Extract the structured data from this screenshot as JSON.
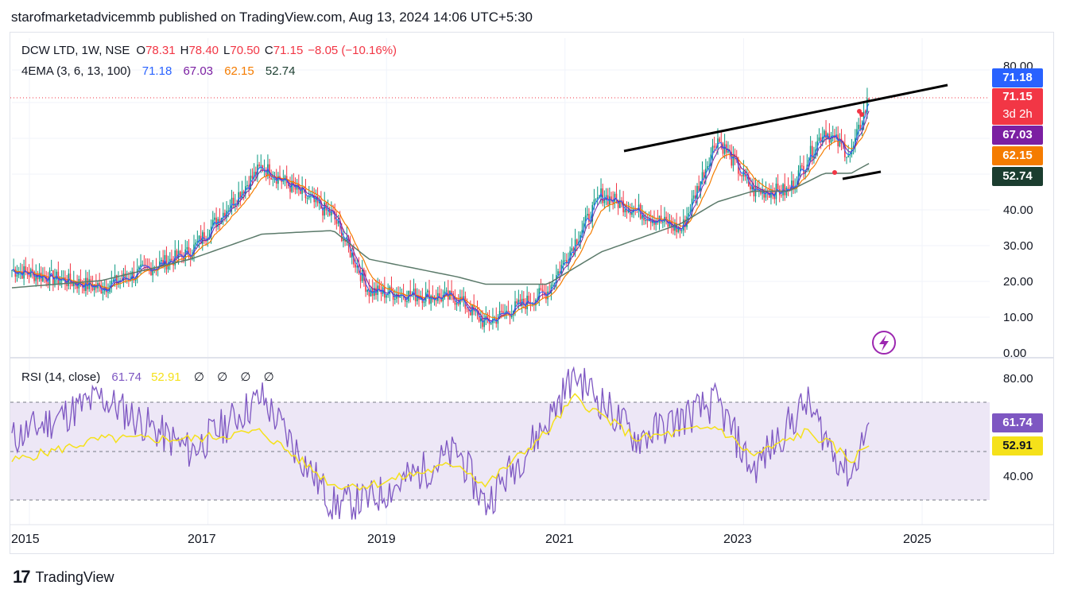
{
  "header": {
    "publisher_line": "starofmarketadvicemmb published on TradingView.com, Aug 13, 2024 14:06 UTC+5:30"
  },
  "symbol": {
    "name": "DCW LTD, 1W, NSE",
    "open_label": "O",
    "open": "78.31",
    "high_label": "H",
    "high": "78.40",
    "low_label": "L",
    "low": "70.50",
    "close_label": "C",
    "close": "71.15",
    "change": "−8.05 (−10.16%)"
  },
  "ema_legend": {
    "name": "4EMA (3, 6, 13, 100)",
    "values": [
      "71.18",
      "67.03",
      "62.15",
      "52.74"
    ]
  },
  "rsi_legend": {
    "name": "RSI (14, close)",
    "values": [
      "61.74",
      "52.91"
    ],
    "empties": [
      "∅",
      "∅",
      "∅",
      "∅"
    ]
  },
  "price_axis": [
    "80.00",
    "40.00",
    "30.00",
    "20.00",
    "10.00",
    "0.00"
  ],
  "rsi_axis": [
    "80.00",
    "40.00"
  ],
  "time_axis": [
    "2015",
    "2017",
    "2019",
    "2021",
    "2023",
    "2025"
  ],
  "price_tags": {
    "ema3": "71.18",
    "last_price": "71.15",
    "countdown": "3d 2h",
    "ema6": "67.03",
    "ema13": "62.15",
    "ema100": "52.74"
  },
  "rsi_tags": {
    "rsi": "61.74",
    "rsi_ma": "52.91"
  },
  "colors": {
    "ema3": "#2962ff",
    "ema6": "#7b1fa2",
    "ema13": "#f57c00",
    "ema100": "#1b3d2f",
    "last_price": "#f23645",
    "up": "#089981",
    "down": "#f23645",
    "rsi": "#7e57c2",
    "rsi_ma": "#f5e11a",
    "rsi_band": "#ede7f6"
  },
  "icons": {
    "lightning": "lightning-icon",
    "logo": "tradingview-logo-icon"
  },
  "footer": {
    "brand": "TradingView"
  },
  "chart_data": [
    {
      "type": "line",
      "title": "DCW LTD, 1W, NSE",
      "ylim": [
        0,
        80
      ],
      "x": [
        "2015",
        "2016",
        "2017",
        "2017.8",
        "2018.6",
        "2019",
        "2020",
        "2020.3",
        "2021",
        "2021.6",
        "2022.5",
        "2022.9",
        "2023.3",
        "2023.7",
        "2024.1",
        "2024.4",
        "2024.6"
      ],
      "series": [
        {
          "name": "DCW LTD",
          "values": [
            23,
            18,
            28,
            52,
            38,
            17,
            15,
            8,
            17,
            44,
            34,
            60,
            45,
            45,
            62,
            55,
            71.15
          ]
        },
        {
          "name": "EMA100",
          "values": [
            18,
            20,
            26,
            33,
            34,
            26,
            21,
            19,
            19,
            28,
            36,
            42,
            45,
            45,
            50,
            50,
            52.74
          ]
        }
      ],
      "annotations": [
        {
          "label": "resistance trendline",
          "x": [
            "2021.7",
            "2024.9"
          ],
          "y": [
            56,
            74
          ]
        },
        {
          "label": "support trendline",
          "x": [
            "2024.1",
            "2024.6"
          ],
          "y": [
            48,
            50
          ]
        }
      ]
    },
    {
      "type": "line",
      "title": "RSI (14, close)",
      "ylim": [
        20,
        85
      ],
      "bands": [
        30,
        70
      ],
      "x": [
        "2015",
        "2016",
        "2017",
        "2017.8",
        "2018.6",
        "2019",
        "2020",
        "2020.3",
        "2021",
        "2021.3",
        "2022",
        "2022.9",
        "2023.3",
        "2023.9",
        "2024.2",
        "2024.4",
        "2024.6"
      ],
      "series": [
        {
          "name": "RSI",
          "values": [
            55,
            72,
            50,
            72,
            28,
            30,
            50,
            28,
            62,
            82,
            55,
            70,
            42,
            70,
            50,
            40,
            61.74
          ]
        },
        {
          "name": "RSI MA",
          "values": [
            46,
            55,
            55,
            58,
            36,
            36,
            45,
            36,
            58,
            72,
            55,
            60,
            48,
            58,
            52,
            46,
            52.91
          ]
        }
      ]
    }
  ]
}
